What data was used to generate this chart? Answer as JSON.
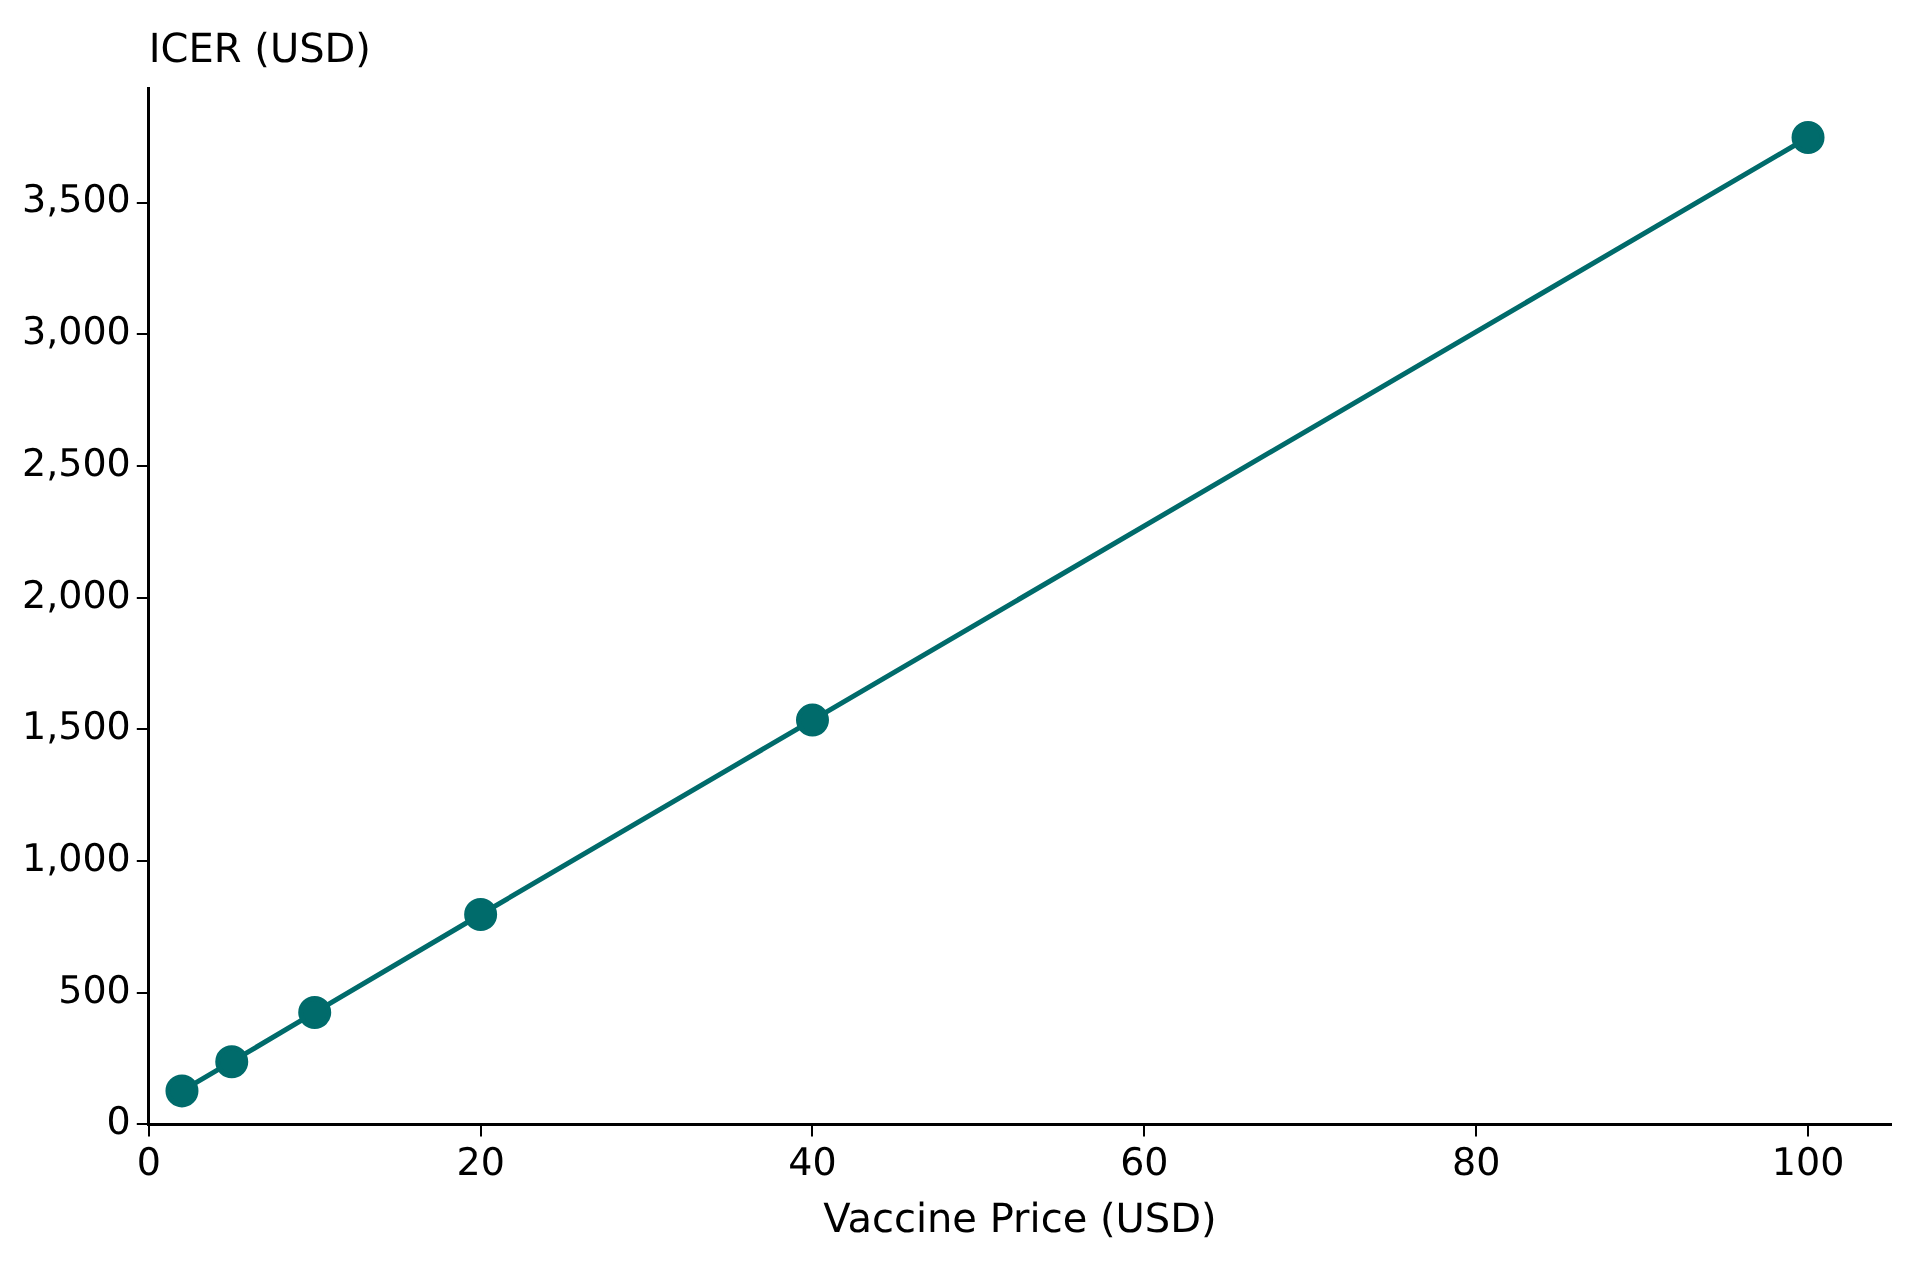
{
  "chart_data": {
    "type": "line",
    "xlabel": "Vaccine Price (USD)",
    "ylabel": "ICER (USD)",
    "x": [
      2,
      5,
      10,
      20,
      40,
      100
    ],
    "series": [
      {
        "color": "#006b6b",
        "values": [
          127,
          238,
          425,
          797,
          1535,
          3747
        ]
      }
    ],
    "xlim": [
      0,
      105
    ],
    "xticks": [
      0,
      20,
      40,
      60,
      80,
      100
    ],
    "ylim": [
      0,
      3935
    ],
    "yticks": [
      {
        "value": 0,
        "label": "0"
      },
      {
        "value": 500,
        "label": "500"
      },
      {
        "value": 1000,
        "label": "1,000"
      },
      {
        "value": 1500,
        "label": "1,500"
      },
      {
        "value": 2000,
        "label": "2,000"
      },
      {
        "value": 2500,
        "label": "2,500"
      },
      {
        "value": 3000,
        "label": "3,000"
      },
      {
        "value": 3500,
        "label": "3,500"
      }
    ],
    "marker": "circle",
    "line_style": "solid",
    "legend": false,
    "grid": false
  }
}
